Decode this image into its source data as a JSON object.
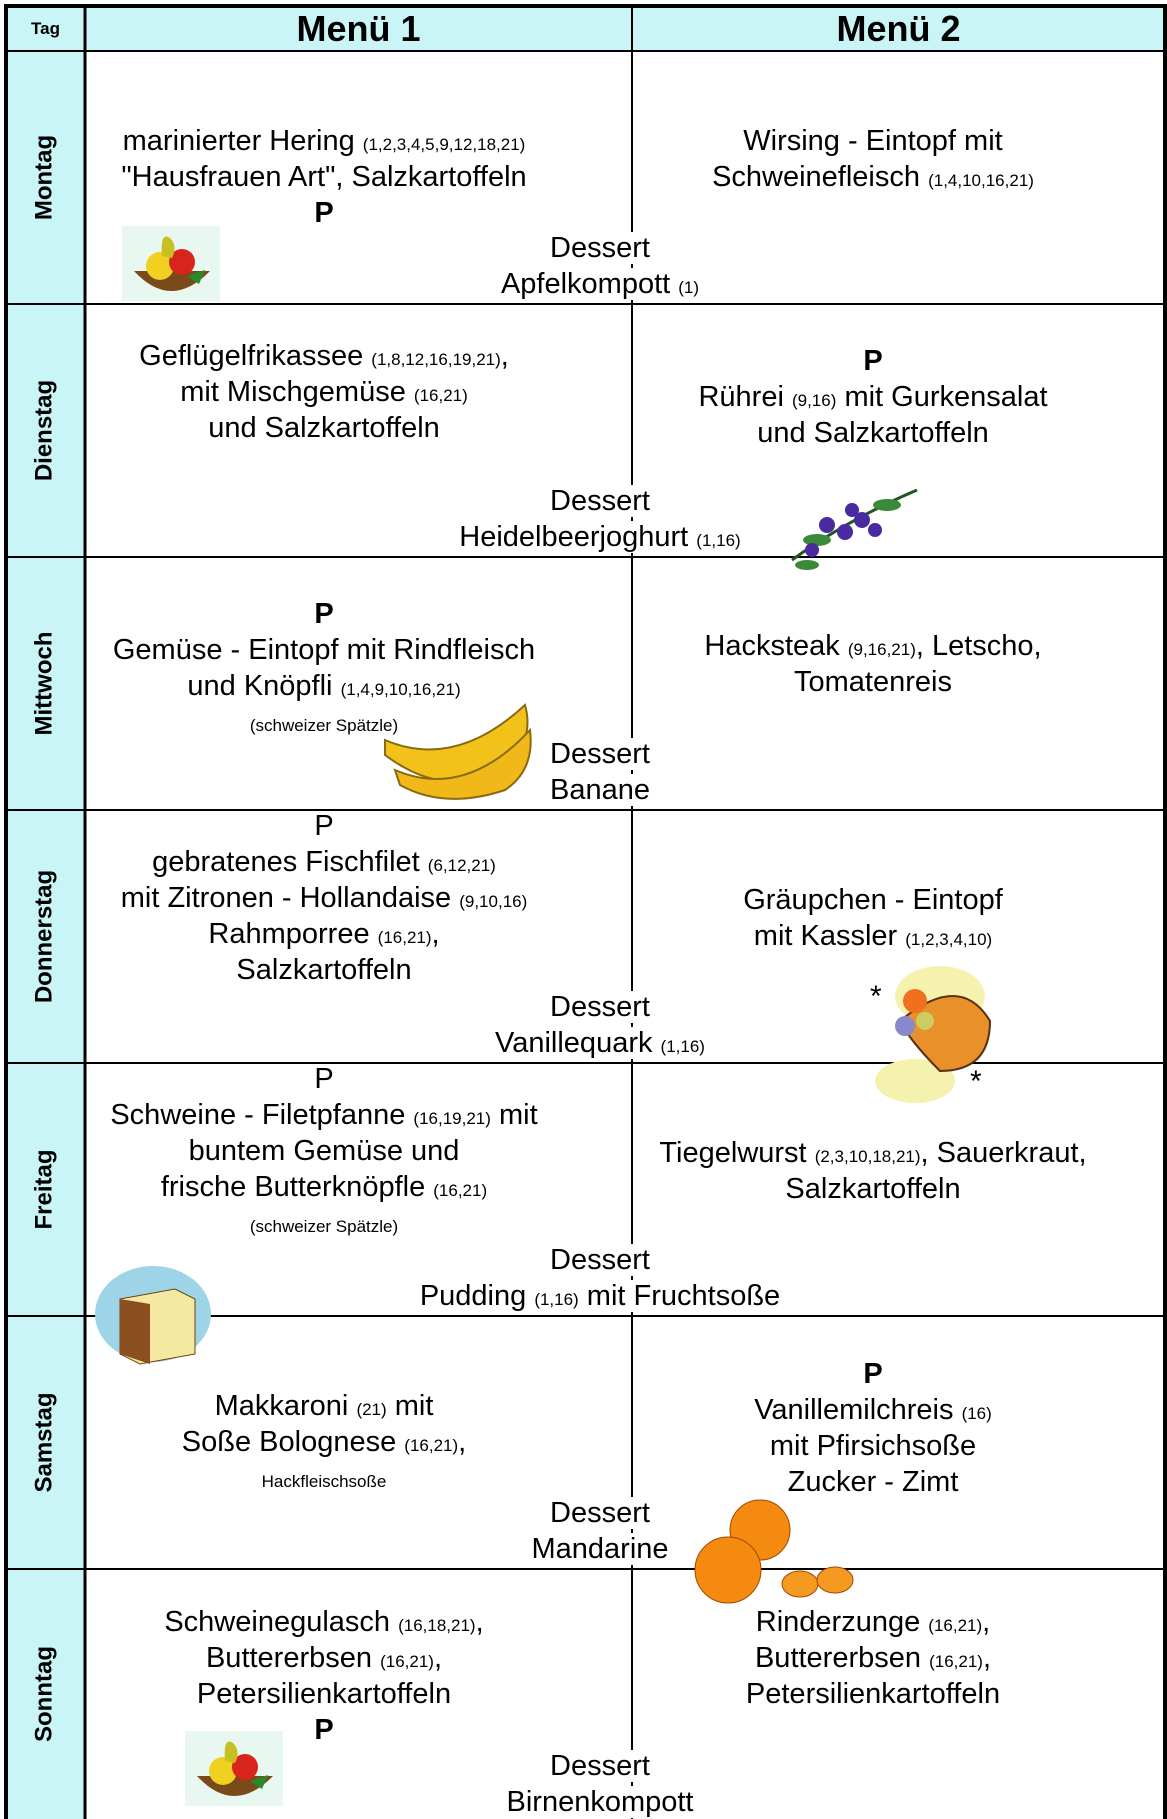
{
  "header": {
    "tag": "Tag",
    "menu1": "Menü 1",
    "menu2": "Menü 2"
  },
  "days": [
    {
      "day": "Montag",
      "menu1": [
        {
          "text": "marinierter Hering",
          "allergens": "(1,2,3,4,5,9,12,18,21)"
        },
        {
          "text": "\"Hausfrauen Art\", Salzkartoffeln"
        },
        {
          "text": "P",
          "bold": true
        }
      ],
      "menu2": [
        {
          "text": "Wirsing - Eintopf mit"
        },
        {
          "text": "Schweinefleisch",
          "allergens": "(1,4,10,16,21)"
        }
      ],
      "dessert": {
        "label": "Dessert",
        "text": "Apfelkompott",
        "allergens": "(1)"
      }
    },
    {
      "day": "Dienstag",
      "menu1": [
        {
          "text": "Geflügelfrikassee",
          "allergens": "(1,8,12,16,19,21)",
          "after": ","
        },
        {
          "text": "mit Mischgemüse",
          "allergens": "(16,21)"
        },
        {
          "text": "und Salzkartoffeln"
        }
      ],
      "menu2": [
        {
          "text": "P",
          "bold": true
        },
        {
          "text": "Rührei",
          "allergens": "(9,16)",
          "after": "mit Gurkensalat"
        },
        {
          "text": "und Salzkartoffeln"
        }
      ],
      "dessert": {
        "label": "Dessert",
        "text": "Heidelbeerjoghurt",
        "allergens": "(1,16)"
      }
    },
    {
      "day": "Mittwoch",
      "menu1": [
        {
          "text": "P",
          "bold": true
        },
        {
          "text": "Gemüse - Eintopf mit Rindfleisch"
        },
        {
          "text": "und Knöpfli",
          "allergens": "(1,4,9,10,16,21)"
        },
        {
          "note": "(schweizer Spätzle)"
        }
      ],
      "menu2": [
        {
          "text": "Hacksteak",
          "allergens": "(9,16,21)",
          "after": ", Letscho,"
        },
        {
          "text": "Tomatenreis"
        }
      ],
      "dessert": {
        "label": "Dessert",
        "text": "Banane"
      }
    },
    {
      "day": "Donnerstag",
      "menu1": [
        {
          "text": "P"
        },
        {
          "text": "gebratenes Fischfilet",
          "allergens": "(6,12,21)"
        },
        {
          "text": "mit Zitronen - Hollandaise",
          "allergens": "(9,10,16)"
        },
        {
          "text": "Rahmporree",
          "allergens": "(16,21)",
          "after": ","
        },
        {
          "text": "Salzkartoffeln"
        }
      ],
      "menu2": [
        {
          "text": "Gräupchen - Eintopf"
        },
        {
          "text": "mit Kassler",
          "allergens": "(1,2,3,4,10)"
        }
      ],
      "dessert": {
        "label": "Dessert",
        "text": "Vanillequark",
        "allergens": "(1,16)"
      }
    },
    {
      "day": "Freitag",
      "menu1": [
        {
          "text": "P"
        },
        {
          "text": "Schweine - Filetpfanne",
          "allergens": "(16,19,21)",
          "after": "mit"
        },
        {
          "text": "buntem Gemüse und"
        },
        {
          "text": "frische Butterknöpfle",
          "allergens": "(16,21)"
        },
        {
          "note": "(schweizer Spätzle)"
        }
      ],
      "menu2": [
        {
          "text": "Tiegelwurst",
          "allergens": "(2,3,10,18,21)",
          "after": ", Sauerkraut,"
        },
        {
          "text": "Salzkartoffeln"
        }
      ],
      "dessert": {
        "label": "Dessert",
        "text": "Pudding",
        "allergens": "(1,16)",
        "after": "mit Fruchtsoße"
      }
    },
    {
      "day": "Samstag",
      "menu1": [
        {
          "text": "Makkaroni",
          "allergens": "(21)",
          "after": "mit"
        },
        {
          "text": "Soße Bolognese",
          "allergens": "(16,21)",
          "after": ","
        },
        {
          "note": "Hackfleischsoße"
        }
      ],
      "menu2": [
        {
          "text": "P",
          "bold": true
        },
        {
          "text": "Vanillemilchreis",
          "allergens": "(16)"
        },
        {
          "text": "mit Pfirsichsoße"
        },
        {
          "text": "Zucker - Zimt"
        }
      ],
      "dessert": {
        "label": "Dessert",
        "text": "Mandarine"
      }
    },
    {
      "day": "Sonntag",
      "menu1": [
        {
          "text": "Schweinegulasch",
          "allergens": "(16,18,21)",
          "after": ","
        },
        {
          "text": "Buttererbsen",
          "allergens": "(16,21)",
          "after": ","
        },
        {
          "text": "Petersilienkartoffeln"
        },
        {
          "text": "P",
          "bold": true
        }
      ],
      "menu2": [
        {
          "text": "Rinderzunge",
          "allergens": "(16,21)",
          "after": ","
        },
        {
          "text": "Buttererbsen",
          "allergens": "(16,21)",
          "after": ","
        },
        {
          "text": "Petersilienkartoffeln"
        }
      ],
      "dessert": {
        "label": "Dessert",
        "text": "Birnenkompott"
      }
    }
  ]
}
